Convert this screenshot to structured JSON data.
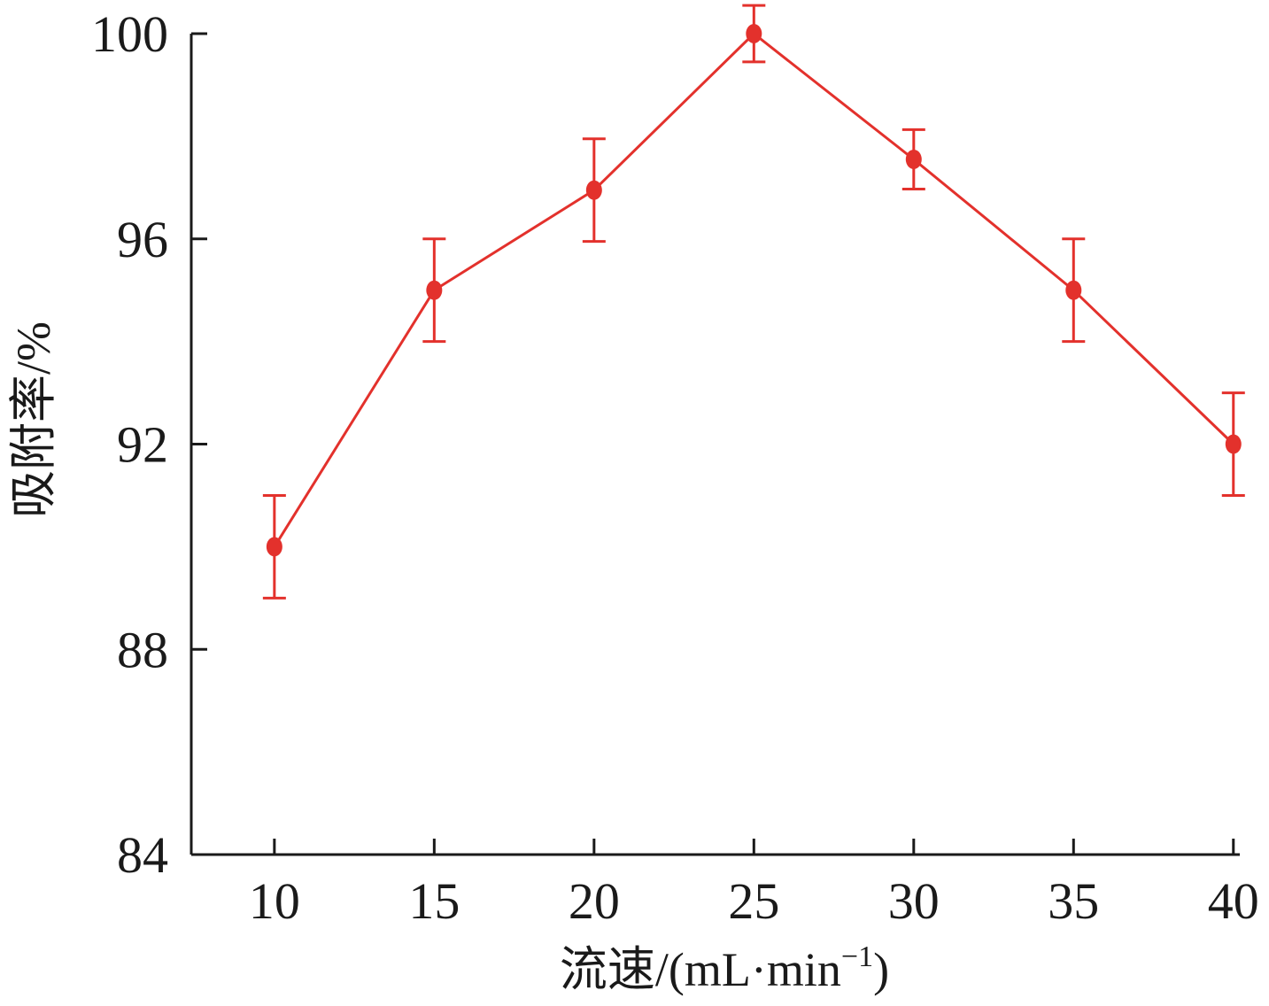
{
  "chart_data": {
    "type": "line",
    "title": "",
    "xlabel": "流速/(mL·min",
    "xlabel_sup": "−1",
    "xlabel_close": ")",
    "ylabel": "吸附率/%",
    "x": [
      10,
      15,
      20,
      25,
      30,
      35,
      40
    ],
    "x_tick_labels": [
      "10",
      "15",
      "20",
      "25",
      "30",
      "35",
      "40"
    ],
    "y_ticks": [
      84,
      88,
      92,
      96,
      100
    ],
    "y_tick_labels": [
      "84",
      "88",
      "92",
      "96",
      "100"
    ],
    "xlim": [
      7.4,
      40.2
    ],
    "ylim": [
      84,
      100
    ],
    "grid": false,
    "series": [
      {
        "values": [
          90.0,
          95.0,
          96.95,
          100.0,
          97.55,
          95.0,
          92.0
        ],
        "error": [
          1.0,
          1.0,
          1.0,
          0.55,
          0.58,
          1.0,
          1.0
        ],
        "color": "#e3312c",
        "marker": "circle"
      }
    ]
  }
}
